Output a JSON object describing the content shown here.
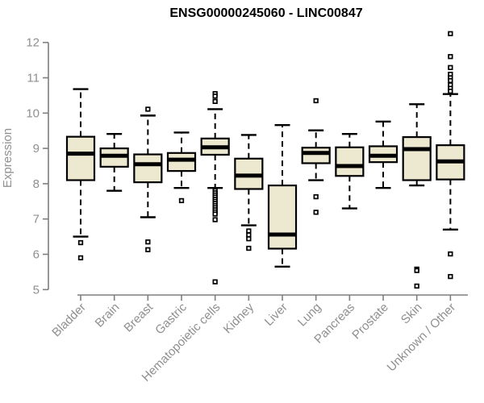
{
  "colors": {
    "box_fill": "#ede8d0",
    "box_stroke": "#000000",
    "median": "#000000",
    "whisker": "#000000",
    "outlier_stroke": "#000000",
    "outlier_fill": "#ffffff",
    "axis": "#7f7f7f",
    "tick_text": "#8f8f8f",
    "title_text": "#000000",
    "background": "#ffffff"
  },
  "chart_data": {
    "type": "boxplot",
    "title": "ENSG00000245060 - LINC00847",
    "xlabel": "",
    "ylabel": "Expression",
    "ylim": [
      5,
      12
    ],
    "yticks": [
      5,
      6,
      7,
      8,
      9,
      10,
      11,
      12
    ],
    "grid": false,
    "legend": "none",
    "categories": [
      "Bladder",
      "Brain",
      "Breast",
      "Gastric",
      "Hematopoietic cells",
      "Kidney",
      "Liver",
      "Lung",
      "Pancreas",
      "Prostate",
      "Skin",
      "Unknown / Other"
    ],
    "series": [
      {
        "name": "Bladder",
        "whisker_low": 6.5,
        "q1": 8.1,
        "median": 8.85,
        "q3": 9.33,
        "whisker_high": 10.68,
        "outliers": [
          6.33,
          5.9
        ]
      },
      {
        "name": "Brain",
        "whisker_low": 7.8,
        "q1": 8.48,
        "median": 8.79,
        "q3": 9.0,
        "whisker_high": 9.41,
        "outliers": []
      },
      {
        "name": "Breast",
        "whisker_low": 7.05,
        "q1": 8.04,
        "median": 8.55,
        "q3": 8.83,
        "whisker_high": 9.93,
        "outliers": [
          10.11,
          6.35,
          6.13
        ]
      },
      {
        "name": "Gastric",
        "whisker_low": 7.88,
        "q1": 8.36,
        "median": 8.68,
        "q3": 8.87,
        "whisker_high": 9.45,
        "outliers": [
          7.52
        ]
      },
      {
        "name": "Hematopoietic cells",
        "whisker_low": 7.88,
        "q1": 8.82,
        "median": 9.03,
        "q3": 9.28,
        "whisker_high": 10.11,
        "outliers": [
          10.55,
          10.48,
          10.33,
          7.8,
          7.74,
          7.68,
          7.62,
          7.56,
          7.5,
          7.44,
          7.38,
          7.32,
          7.26,
          7.2,
          7.14,
          6.98,
          5.22
        ]
      },
      {
        "name": "Kidney",
        "whisker_low": 6.82,
        "q1": 7.85,
        "median": 8.23,
        "q3": 8.71,
        "whisker_high": 9.38,
        "outliers": [
          6.66,
          6.55,
          6.44,
          6.17
        ]
      },
      {
        "name": "Liver",
        "whisker_low": 5.65,
        "q1": 6.16,
        "median": 6.56,
        "q3": 7.95,
        "whisker_high": 9.66,
        "outliers": []
      },
      {
        "name": "Lung",
        "whisker_low": 8.1,
        "q1": 8.58,
        "median": 8.87,
        "q3": 9.02,
        "whisker_high": 9.51,
        "outliers": [
          10.35,
          7.63,
          7.19
        ]
      },
      {
        "name": "Pancreas",
        "whisker_low": 7.3,
        "q1": 8.22,
        "median": 8.5,
        "q3": 9.03,
        "whisker_high": 9.41,
        "outliers": []
      },
      {
        "name": "Prostate",
        "whisker_low": 7.88,
        "q1": 8.61,
        "median": 8.79,
        "q3": 9.06,
        "whisker_high": 9.76,
        "outliers": []
      },
      {
        "name": "Skin",
        "whisker_low": 7.95,
        "q1": 8.1,
        "median": 8.98,
        "q3": 9.32,
        "whisker_high": 10.25,
        "outliers": [
          5.58,
          5.54,
          5.1
        ]
      },
      {
        "name": "Unknown / Other",
        "whisker_low": 6.7,
        "q1": 8.12,
        "median": 8.63,
        "q3": 9.09,
        "whisker_high": 10.54,
        "outliers": [
          12.25,
          11.6,
          11.29,
          11.1,
          11.0,
          10.92,
          10.8,
          10.7,
          10.62,
          6.01,
          5.37
        ]
      }
    ]
  }
}
